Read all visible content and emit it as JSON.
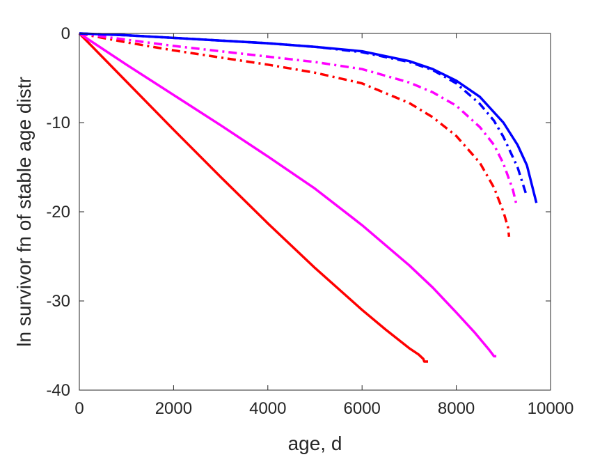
{
  "chart_data": {
    "type": "line",
    "title": "",
    "xlabel": "age, d",
    "ylabel": "ln survivor fn of stable age distr",
    "xlim": [
      0,
      10000
    ],
    "ylim": [
      -40,
      0
    ],
    "xticks": [
      0,
      2000,
      4000,
      6000,
      8000,
      10000
    ],
    "yticks": [
      -40,
      -30,
      -20,
      -10,
      0
    ],
    "xtick_labels": [
      "0",
      "2000",
      "4000",
      "6000",
      "8000",
      "10000"
    ],
    "ytick_labels": [
      "-40",
      "-30",
      "-20",
      "-10",
      "0"
    ],
    "grid": false,
    "legend": "none",
    "series": [
      {
        "color": "#ff0000",
        "style": "solid",
        "x": [
          0,
          1000,
          2000,
          3000,
          4000,
          5000,
          6000,
          6500,
          7000,
          7200,
          7300,
          7320,
          7400
        ],
        "y": [
          0,
          -5.4,
          -10.8,
          -16.1,
          -21.3,
          -26.3,
          -31.0,
          -33.2,
          -35.3,
          -36.0,
          -36.5,
          -36.8,
          -36.8
        ]
      },
      {
        "color": "#ff00ff",
        "style": "solid",
        "x": [
          0,
          1000,
          2000,
          3000,
          4000,
          5000,
          6000,
          7000,
          7500,
          8000,
          8400,
          8700,
          8800,
          8850
        ],
        "y": [
          0,
          -3.5,
          -6.9,
          -10.3,
          -13.8,
          -17.4,
          -21.5,
          -26.0,
          -28.5,
          -31.3,
          -33.6,
          -35.5,
          -36.2,
          -36.2
        ]
      },
      {
        "color": "#ff0000",
        "style": "dashdot",
        "x": [
          0,
          1000,
          2000,
          3000,
          4000,
          5000,
          6000,
          7000,
          7500,
          8000,
          8500,
          8800,
          9000,
          9100,
          9120
        ],
        "y": [
          0,
          -1.0,
          -1.9,
          -2.7,
          -3.5,
          -4.4,
          -5.6,
          -7.8,
          -9.4,
          -11.5,
          -14.5,
          -17.3,
          -20.0,
          -21.8,
          -22.8
        ]
      },
      {
        "color": "#ff00ff",
        "style": "dashdot",
        "x": [
          0,
          1000,
          2000,
          3000,
          4000,
          5000,
          6000,
          7000,
          7500,
          8000,
          8500,
          8800,
          9000,
          9200,
          9280
        ],
        "y": [
          0,
          -0.7,
          -1.4,
          -2.0,
          -2.6,
          -3.2,
          -4.0,
          -5.5,
          -6.6,
          -8.1,
          -10.5,
          -12.5,
          -14.6,
          -17.5,
          -19.3
        ]
      },
      {
        "color": "#0000ff",
        "style": "dashdot",
        "x": [
          0,
          1000,
          2000,
          3000,
          4000,
          5000,
          6000,
          7000,
          7500,
          8000,
          8500,
          8800,
          9000,
          9300,
          9480
        ],
        "y": [
          0,
          -0.2,
          -0.5,
          -0.8,
          -1.1,
          -1.5,
          -2.1,
          -3.2,
          -4.1,
          -5.6,
          -7.9,
          -9.8,
          -11.6,
          -15.0,
          -18.0
        ]
      },
      {
        "color": "#0000ff",
        "style": "solid",
        "x": [
          0,
          1000,
          2000,
          3000,
          4000,
          5000,
          6000,
          7000,
          7500,
          8000,
          8500,
          9000,
          9300,
          9500,
          9700
        ],
        "y": [
          0,
          -0.2,
          -0.5,
          -0.8,
          -1.1,
          -1.5,
          -2.0,
          -3.1,
          -4.0,
          -5.3,
          -7.1,
          -10.0,
          -12.5,
          -14.8,
          -19.0
        ]
      }
    ]
  }
}
